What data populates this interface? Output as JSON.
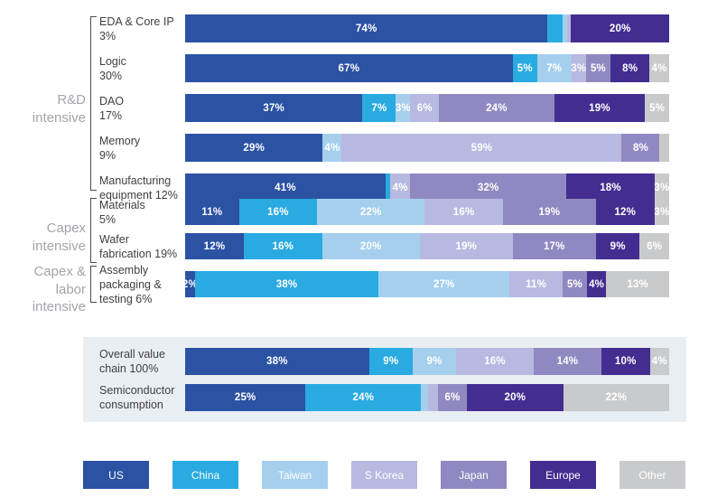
{
  "chart_data": {
    "type": "bar",
    "variant": "horizontal-stacked-percent",
    "title": "",
    "xlabel": "",
    "ylabel": "",
    "series_names": [
      "US",
      "China",
      "Taiwan",
      "S Korea",
      "Japan",
      "Europe",
      "Other"
    ],
    "series_colors": [
      "#2b52a3",
      "#29aae1",
      "#a6cfee",
      "#b7b9e0",
      "#9089c1",
      "#442d90",
      "#c9cacc"
    ],
    "legend_position": "bottom",
    "groups": [
      {
        "label_lines": [
          "R&D",
          "intensive"
        ],
        "rows": [
          0,
          1,
          2,
          3,
          4
        ]
      },
      {
        "label_lines": [
          "Capex",
          "intensive"
        ],
        "rows": [
          5,
          6
        ]
      },
      {
        "label_lines": [
          "Capex &",
          "labor intensive"
        ],
        "rows": [
          7
        ]
      }
    ],
    "rows": [
      {
        "label_lines": [
          "EDA & Core IP",
          "3%"
        ],
        "values": [
          74,
          3,
          1,
          0.8,
          0,
          20,
          0
        ],
        "labels": [
          "74%",
          "",
          "",
          "",
          "",
          "20%",
          ""
        ]
      },
      {
        "label_lines": [
          "Logic",
          "30%"
        ],
        "values": [
          67,
          5,
          7,
          3,
          5,
          8,
          4
        ],
        "labels": [
          "67%",
          "5%",
          "7%",
          "3%",
          "5%",
          "8%",
          "4%"
        ]
      },
      {
        "label_lines": [
          "DAO",
          "17%"
        ],
        "values": [
          37,
          7,
          3,
          6,
          24,
          19,
          5
        ],
        "labels": [
          "37%",
          "7%",
          "3%",
          "6%",
          "24%",
          "19%",
          "5%"
        ]
      },
      {
        "label_lines": [
          "Memory",
          "9%"
        ],
        "values": [
          29,
          0,
          4,
          59,
          8,
          0,
          2
        ],
        "labels": [
          "29%",
          "",
          "4%",
          "59%",
          "8%",
          "",
          ""
        ]
      },
      {
        "label_lines": [
          "Manufacturing",
          "equipment 12%"
        ],
        "values": [
          41,
          1,
          0,
          4,
          32,
          18,
          3
        ],
        "labels": [
          "41%",
          "",
          "",
          "4%",
          "32%",
          "18%",
          "3%"
        ]
      },
      {
        "label_lines": [
          "Materials",
          "5%"
        ],
        "values": [
          11,
          16,
          22,
          16,
          19,
          12,
          3
        ],
        "labels": [
          "11%",
          "16%",
          "22%",
          "16%",
          "19%",
          "12%",
          "3%"
        ]
      },
      {
        "label_lines": [
          "Wafer",
          "fabrication 19%"
        ],
        "values": [
          12,
          16,
          20,
          19,
          17,
          9,
          6
        ],
        "labels": [
          "12%",
          "16%",
          "20%",
          "19%",
          "17%",
          "9%",
          "6%"
        ]
      },
      {
        "label_lines": [
          "Assembly",
          "packaging &",
          "testing 6%"
        ],
        "values": [
          2,
          38,
          27,
          11,
          5,
          4,
          13
        ],
        "labels": [
          "2%",
          "38%",
          "27%",
          "11%",
          "5%",
          "4%",
          "13%"
        ]
      }
    ],
    "panel_rows": [
      {
        "label_lines": [
          "Overall value",
          "chain 100%"
        ],
        "values": [
          38,
          9,
          9,
          16,
          14,
          10,
          4
        ],
        "labels": [
          "38%",
          "9%",
          "9%",
          "16%",
          "14%",
          "10%",
          "4%"
        ]
      },
      {
        "label_lines": [
          "Semiconductor",
          "consumption"
        ],
        "values": [
          25,
          24,
          1.5,
          2,
          6,
          20,
          22
        ],
        "labels": [
          "25%",
          "24%",
          "",
          "",
          "6%",
          "20%",
          "22%"
        ]
      }
    ],
    "legend": [
      "US",
      "China",
      "Taiwan",
      "S Korea",
      "Japan",
      "Europe",
      "Other"
    ],
    "panel_background": "#e9eef3"
  }
}
